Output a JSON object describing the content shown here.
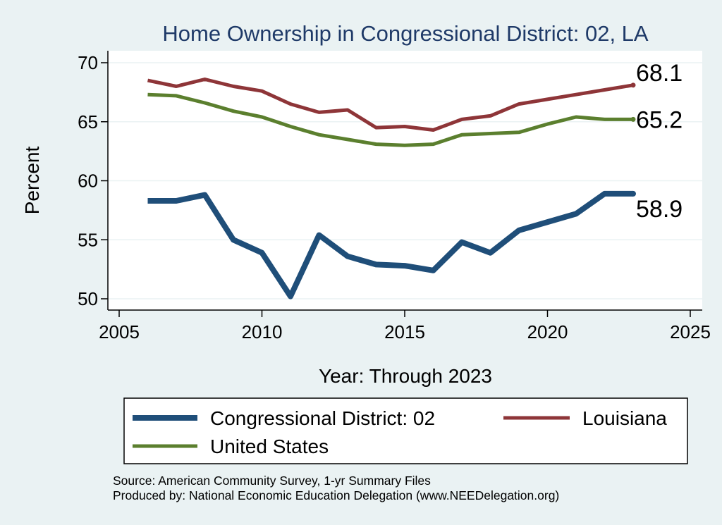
{
  "chart_data": {
    "type": "line",
    "title": "Home Ownership in Congressional District:  02, LA",
    "xlabel": "Year: Through 2023",
    "ylabel": "Percent",
    "xlim": [
      2005,
      2025
    ],
    "ylim": [
      50,
      70
    ],
    "x_ticks": [
      "2005",
      "2010",
      "2015",
      "2020",
      "2025"
    ],
    "y_ticks": [
      "50",
      "55",
      "60",
      "65",
      "70"
    ],
    "grid": true,
    "legend_position": "bottom",
    "x": [
      2006,
      2007,
      2008,
      2009,
      2010,
      2011,
      2012,
      2013,
      2014,
      2015,
      2016,
      2017,
      2018,
      2019,
      2020,
      2021,
      2022,
      2023
    ],
    "series": [
      {
        "name": "Congressional District:  02",
        "color": "#1F4E79",
        "values": [
          58.3,
          58.3,
          58.8,
          55.0,
          53.9,
          50.2,
          55.4,
          53.6,
          52.9,
          52.8,
          52.4,
          54.8,
          53.9,
          55.8,
          56.5,
          57.2,
          58.9,
          58.9
        ],
        "end_label": "58.9"
      },
      {
        "name": "Louisiana",
        "color": "#8E3538",
        "values": [
          68.5,
          68.0,
          68.6,
          68.0,
          67.6,
          66.5,
          65.8,
          66.0,
          64.5,
          64.6,
          64.3,
          65.2,
          65.5,
          66.5,
          66.9,
          67.3,
          67.7,
          68.1
        ],
        "end_label": "68.1"
      },
      {
        "name": "United States",
        "color": "#5B7F2E",
        "values": [
          67.3,
          67.2,
          66.6,
          65.9,
          65.4,
          64.6,
          63.9,
          63.5,
          63.1,
          63.0,
          63.1,
          63.9,
          64.0,
          64.1,
          64.8,
          65.4,
          65.2,
          65.2
        ],
        "end_label": "65.2"
      }
    ],
    "legend": [
      {
        "label": "Congressional District:  02",
        "color": "#1F4E79"
      },
      {
        "label": "Louisiana",
        "color": "#8E3538"
      },
      {
        "label": "United States",
        "color": "#5B7F2E"
      }
    ]
  },
  "source_lines": [
    "Source: American Community Survey, 1-yr Summary Files",
    "Produced by: National Economic Education Delegation (www.NEEDelegation.org)"
  ]
}
